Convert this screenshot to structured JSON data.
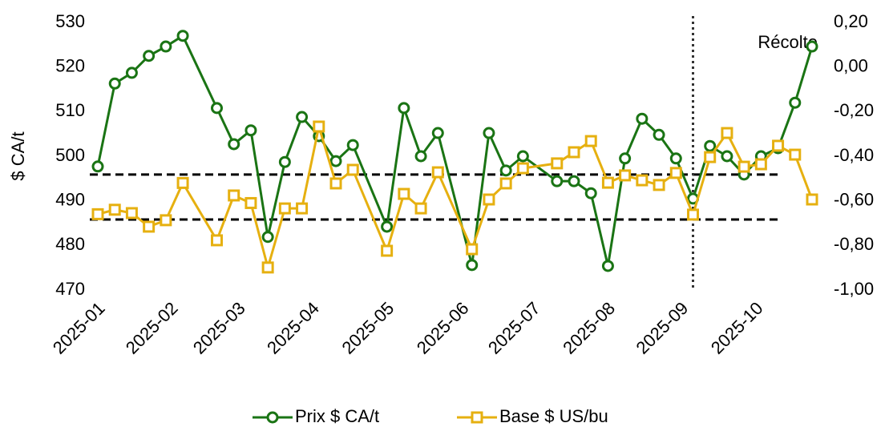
{
  "chart_data": {
    "type": "line",
    "y_label": "$ CA/t",
    "x": [
      0,
      1,
      2,
      3,
      4,
      5,
      7,
      8,
      9,
      10,
      11,
      12,
      13,
      14,
      15,
      17,
      18,
      19,
      20,
      22,
      23,
      24,
      25,
      27,
      28,
      29,
      30,
      31,
      32,
      33,
      34,
      35,
      36,
      37,
      38,
      39,
      40,
      41,
      42
    ],
    "xlim": [
      0,
      42
    ],
    "xticks": [
      {
        "value": 0,
        "label": "2025-01"
      },
      {
        "value": 4.29,
        "label": "2025-02"
      },
      {
        "value": 8.25,
        "label": "2025-03"
      },
      {
        "value": 12.6,
        "label": "2025-04"
      },
      {
        "value": 17,
        "label": "2025-05"
      },
      {
        "value": 21.4,
        "label": "2025-06"
      },
      {
        "value": 25.6,
        "label": "2025-07"
      },
      {
        "value": 30,
        "label": "2025-08"
      },
      {
        "value": 34.3,
        "label": "2025-09"
      },
      {
        "value": 38.7,
        "label": "2025-10"
      }
    ],
    "ylim": [
      470,
      530
    ],
    "yticks": [
      470,
      480,
      490,
      500,
      510,
      520,
      530
    ],
    "y2lim": [
      -1.0,
      0.2
    ],
    "y2ticks": [
      {
        "value": -1.0,
        "label": "-1,00"
      },
      {
        "value": -0.8,
        "label": "-0,80"
      },
      {
        "value": -0.6,
        "label": "-0,60"
      },
      {
        "value": -0.4,
        "label": "-0,40"
      },
      {
        "value": -0.2,
        "label": "-0,20"
      },
      {
        "value": 0,
        "label": "0,00"
      },
      {
        "value": 0.2,
        "label": "0,20"
      }
    ],
    "grid": false,
    "legend": "bottom",
    "hlines": [
      495.9,
      485.8
    ],
    "annotation": {
      "text": "Récolte",
      "x": 35
    },
    "series": [
      {
        "name": "Prix $ CA/t",
        "color": "#1a7414",
        "marker": "circle",
        "values": [
          497.7,
          516.3,
          518.7,
          522.5,
          524.6,
          527,
          510.8,
          502.7,
          505.8,
          481.9,
          498.7,
          508.8,
          504.5,
          498.9,
          502.5,
          484.2,
          510.8,
          500,
          505.2,
          475.6,
          505.2,
          496.8,
          500,
          494.4,
          494.4,
          491.7,
          475.4,
          499.5,
          508.4,
          504.8,
          499.5,
          490.5,
          502.3,
          500,
          495.9,
          500,
          501.8,
          512,
          524.6
        ]
      },
      {
        "name": "Base $ US/bu",
        "color": "#e6b010",
        "marker": "square",
        "axis": "y2",
        "values": [
          -0.66,
          -0.64,
          -0.655,
          -0.716,
          -0.687,
          -0.52,
          -0.777,
          -0.576,
          -0.61,
          -0.899,
          -0.634,
          -0.634,
          -0.267,
          -0.522,
          -0.461,
          -0.824,
          -0.569,
          -0.634,
          -0.472,
          -0.817,
          -0.594,
          -0.522,
          -0.454,
          -0.432,
          -0.382,
          -0.332,
          -0.519,
          -0.486,
          -0.508,
          -0.529,
          -0.475,
          -0.662,
          -0.404,
          -0.296,
          -0.447,
          -0.436,
          -0.353,
          -0.393,
          -0.594
        ]
      }
    ]
  }
}
